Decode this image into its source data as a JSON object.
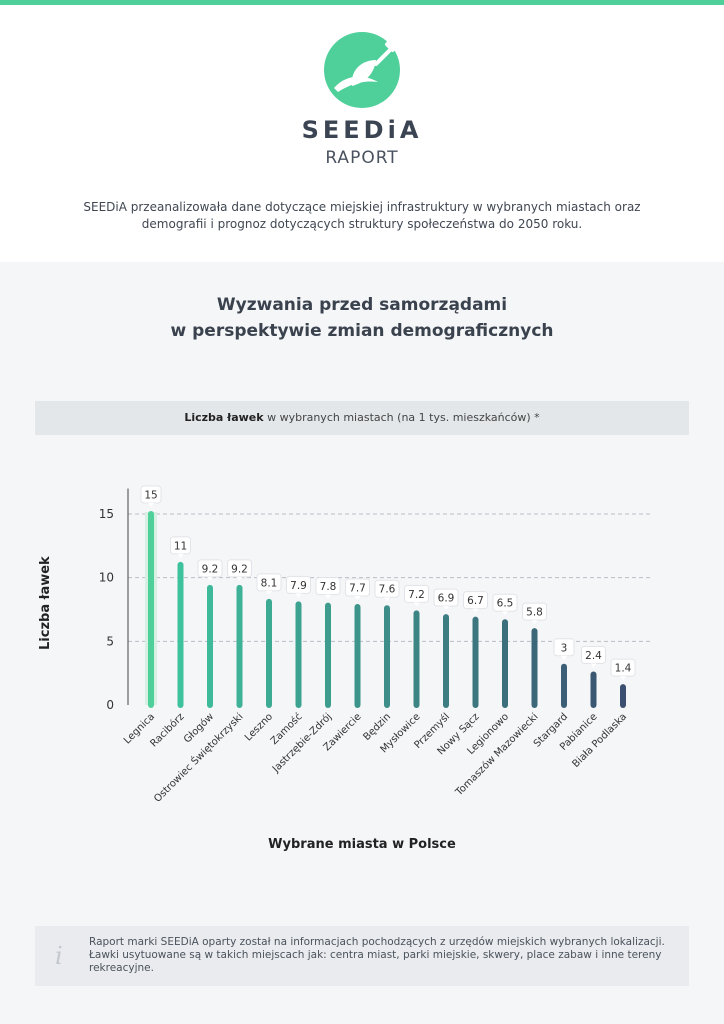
{
  "brand": {
    "name": "SEEDiA",
    "subtitle": "RAPORT"
  },
  "intro": "SEEDiA przeanalizowała dane dotyczące miejskiej infrastruktury w wybranych miastach oraz demografii i prognoz dotyczących struktury społeczeństwa do 2050 roku.",
  "section_title_line1": "Wyzwania przed samorządami",
  "section_title_line2": "w perspektywie zmian demograficznych",
  "caption": {
    "bold": "Liczba ławek",
    "rest": " w wybranych miastach (na 1 tys. mieszkańców) *"
  },
  "note": "Raport marki SEEDiA oparty został na informacjach pochodzących z urzędów miejskich wybranych lokalizacji. Ławki usytuowane są w takich miejscach jak: centra miast, parki miejskie, skwery, place zabaw i inne tereny rekreacyjne.",
  "colors": {
    "accent": "#4fd09a",
    "bar_start": "#3ec9a0",
    "bar_end": "#3b5070",
    "grid": "#b9bec5"
  },
  "icons": {
    "note": "info-icon",
    "logo": "seedia-leaf-plug-logo"
  },
  "chart_data": {
    "type": "bar",
    "xlabel": "Wybrane miasta w Polsce",
    "ylabel": "Liczba ławek",
    "ylim": [
      0,
      17
    ],
    "yticks": [
      0,
      5,
      10,
      15
    ],
    "grid": true,
    "categories": [
      "Legnica",
      "Racibórz",
      "Głogów",
      "Ostrowiec Świętokrzyski",
      "Leszno",
      "Zamość",
      "Jastrzębie-Zdrój",
      "Zawiercie",
      "Będzin",
      "Mysłowice",
      "Przemyśl",
      "Nowy Sącz",
      "Legionowo",
      "Tomaszów Mazowiecki",
      "Stargard",
      "Pabianice",
      "Biała Podlaska"
    ],
    "values": [
      15,
      11,
      9.2,
      9.2,
      8.1,
      7.9,
      7.8,
      7.7,
      7.6,
      7.2,
      6.9,
      6.7,
      6.5,
      5.8,
      3,
      2.4,
      1.4
    ]
  }
}
